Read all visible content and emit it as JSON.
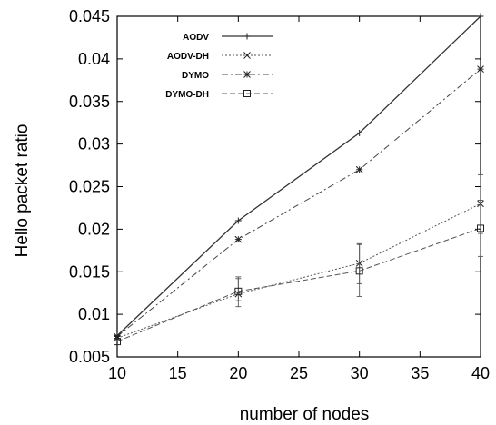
{
  "chart_data": {
    "type": "line",
    "title": "",
    "xlabel": "number of nodes",
    "ylabel": "Hello packet ratio",
    "x": [
      10,
      20,
      30,
      40
    ],
    "xlim": [
      10,
      40
    ],
    "ylim": [
      0.005,
      0.045
    ],
    "xticks": [
      "10",
      "15",
      "20",
      "25",
      "30",
      "35",
      "40"
    ],
    "yticks": [
      "0.005",
      "0.01",
      "0.015",
      "0.02",
      "0.025",
      "0.03",
      "0.035",
      "0.04",
      "0.045"
    ],
    "grid": false,
    "legend_position": "top-left",
    "series": [
      {
        "name": "AODV",
        "marker": "plus",
        "dash": "solid",
        "values": [
          0.0075,
          0.021,
          0.0313,
          0.045
        ]
      },
      {
        "name": "AODV-DH",
        "marker": "cross",
        "dash": "dotted",
        "values": [
          0.0072,
          0.0124,
          0.016,
          0.023
        ],
        "errors": [
          {
            "x": 20,
            "low": 0.0116,
            "high": 0.0144
          },
          {
            "x": 30,
            "low": 0.0136,
            "high": 0.0183
          },
          {
            "x": 40,
            "low": 0.0195,
            "high": 0.0264
          }
        ]
      },
      {
        "name": "DYMO",
        "marker": "star",
        "dash": "dash-dot",
        "values": [
          0.0074,
          0.0188,
          0.027,
          0.0388
        ]
      },
      {
        "name": "DYMO-DH",
        "marker": "square",
        "dash": "dashed",
        "values": [
          0.0068,
          0.0127,
          0.0151,
          0.0201
        ],
        "errors": [
          {
            "x": 20,
            "low": 0.0109,
            "high": 0.0142
          },
          {
            "x": 30,
            "low": 0.0121,
            "high": 0.0182
          },
          {
            "x": 40,
            "low": 0.0168,
            "high": 0.0234
          }
        ]
      }
    ]
  }
}
